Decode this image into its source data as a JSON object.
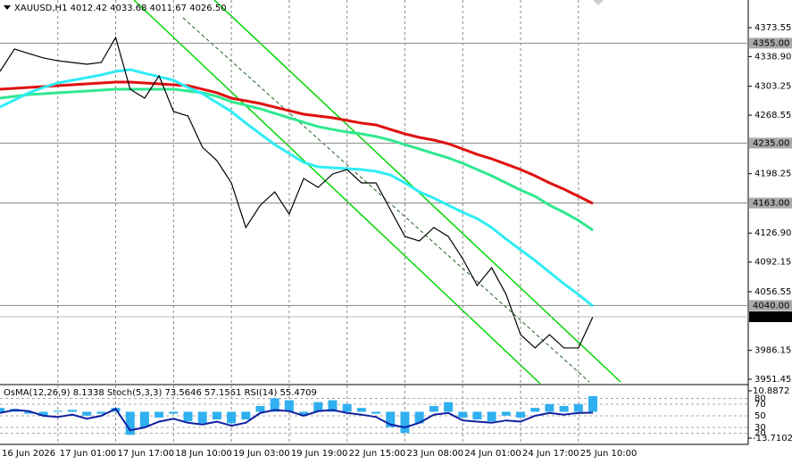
{
  "chart_data": [
    {
      "type": "line",
      "title": "XAUUSD,H1  4012.42 4033.68 4011.67 4026.50",
      "categories": [
        "16 Jun 2026",
        null,
        null,
        null,
        "17 Jun 01:00",
        null,
        null,
        null,
        "17 Jun 17:00",
        null,
        null,
        null,
        "18 Jun 10:00",
        null,
        null,
        null,
        "19 Jun 03:00",
        null,
        null,
        null,
        "19 Jun 19:00",
        null,
        null,
        null,
        "22 Jun 15:00",
        null,
        null,
        null,
        "23 Jun 08:00",
        null,
        null,
        null,
        "24 Jun 01:00",
        null,
        null,
        null,
        "24 Jun 17:00",
        null,
        null,
        null,
        "25 Jun 10:00",
        null
      ],
      "series": [
        {
          "color": "#e01010",
          "values": [
            4299.7,
            4300.7,
            4301.8,
            4302.9,
            4303.9,
            4305.0,
            4306.1,
            4307.2,
            4308.2,
            4308.2,
            4307.2,
            4306.1,
            4305.0,
            4303.9,
            4299.7,
            4295.4,
            4288.9,
            4285.7,
            4282.5,
            4278.2,
            4273.9,
            4269.7,
            4267.5,
            4265.4,
            4262.2,
            4259.0,
            4256.8,
            4251.4,
            4246.1,
            4241.8,
            4238.6,
            4234.3,
            4227.9,
            4221.4,
            4216.1,
            4209.7,
            4203.2,
            4195.7,
            4187.2,
            4179.7,
            4171.1,
            4162.5
          ]
        },
        {
          "color": "#30e890",
          "values": [
            4288.9,
            4291.1,
            4293.2,
            4294.3,
            4295.4,
            4296.4,
            4297.5,
            4298.6,
            4299.7,
            4299.7,
            4299.7,
            4299.7,
            4299.7,
            4297.5,
            4295.4,
            4291.1,
            4284.7,
            4280.4,
            4276.1,
            4270.7,
            4265.4,
            4260.0,
            4254.7,
            4251.4,
            4248.2,
            4246.1,
            4242.9,
            4238.6,
            4233.2,
            4227.9,
            4222.5,
            4217.2,
            4210.7,
            4203.2,
            4195.7,
            4187.2,
            4178.6,
            4171.1,
            4160.4,
            4151.8,
            4142.2,
            4130.4
          ]
        },
        {
          "color": "#30ecf4",
          "values": [
            4278.2,
            4286.8,
            4295.4,
            4301.8,
            4307.2,
            4310.4,
            4313.6,
            4316.8,
            4321.1,
            4323.2,
            4318.9,
            4314.7,
            4310.4,
            4301.8,
            4294.3,
            4283.6,
            4272.9,
            4259.0,
            4246.1,
            4233.2,
            4222.5,
            4211.8,
            4206.4,
            4205.4,
            4204.3,
            4203.2,
            4201.1,
            4196.8,
            4187.2,
            4176.4,
            4168.9,
            4160.4,
            4151.8,
            4144.3,
            4133.6,
            4119.7,
            4106.8,
            4094.0,
            4080.0,
            4066.1,
            4053.2,
            4039.3
          ]
        },
        {
          "color": "#000000",
          "values": [
            4321.1,
            4347.9,
            4342.5,
            4337.2,
            4333.9,
            4331.8,
            4329.7,
            4331.8,
            4361.8,
            4299.7,
            4288.9,
            4315.7,
            4272.9,
            4267.5,
            4230.0,
            4213.9,
            4187.2,
            4133.6,
            4160.4,
            4176.4,
            4149.7,
            4192.5,
            4181.8,
            4197.9,
            4203.2,
            4187.2,
            4187.2,
            4155.0,
            4122.9,
            4117.5,
            4133.6,
            4122.9,
            4096.1,
            4064.0,
            4085.4,
            4053.2,
            4005.0,
            3989.0,
            4005.0,
            3989.0,
            3989.0,
            4026.5
          ]
        }
      ],
      "ylim": [
        3946.1,
        4406.8
      ],
      "yticks": [
        {
          "value": 4373.55,
          "label": "4373.55"
        },
        {
          "value": 4338.9,
          "label": "4338.90"
        },
        {
          "value": 4303.25,
          "label": "4303.25"
        },
        {
          "value": 4268.55,
          "label": "4268.55"
        },
        {
          "value": 4198.25,
          "label": "4198.25"
        },
        {
          "value": 4126.9,
          "label": "4126.90"
        },
        {
          "value": 4092.15,
          "label": "4092.15"
        },
        {
          "value": 4056.55,
          "label": "4056.55"
        },
        {
          "value": 3986.15,
          "label": "3986.15"
        },
        {
          "value": 3951.45,
          "label": "3951.45"
        }
      ],
      "levels": [
        {
          "value": 4355,
          "label": "4355.00"
        },
        {
          "value": 4235,
          "label": "4235.00"
        },
        {
          "value": 4163,
          "label": "4163.00"
        },
        {
          "value": 4040,
          "label": "4040.00"
        }
      ],
      "current": {
        "value": 4026.5,
        "label": "4026.50"
      }
    },
    {
      "type": "bar",
      "title": "OsMA(12,26,9) 8.1338  Stoch(5,3,3) 73.5646 57.1561  RSI(14) 55.4709",
      "color": "#30b0f0",
      "values": [
        2,
        1.5,
        -1,
        -2,
        0.5,
        1,
        -2,
        -1,
        2,
        -12,
        -8,
        -3,
        -1,
        -5,
        -6,
        -4,
        -6,
        -4,
        3,
        7,
        6,
        -2,
        5,
        6,
        4,
        2,
        -1,
        -8,
        -11,
        -6,
        3,
        5,
        -3,
        -4,
        -5,
        -2,
        -3,
        2,
        4,
        3,
        4,
        8.1338
      ],
      "ylim": [
        -13.7102,
        10.8872
      ],
      "yticks": [
        {
          "value": 10.8872,
          "label": "10.8872"
        },
        {
          "value": -13.7102,
          "label": "-13.7102"
        }
      ],
      "series": [
        {
          "color": "#1020a0",
          "axis": "y2",
          "values": [
            55,
            60,
            58,
            50,
            48,
            52,
            45,
            50,
            62,
            25,
            30,
            40,
            45,
            38,
            35,
            40,
            33,
            38,
            55,
            60,
            58,
            50,
            58,
            60,
            55,
            52,
            48,
            35,
            30,
            38,
            52,
            55,
            42,
            40,
            38,
            42,
            40,
            50,
            55,
            52,
            55,
            55.4709
          ]
        }
      ],
      "y2lim": [
        0,
        100
      ],
      "y2ticks": [
        80,
        70,
        50,
        30,
        20
      ]
    }
  ]
}
